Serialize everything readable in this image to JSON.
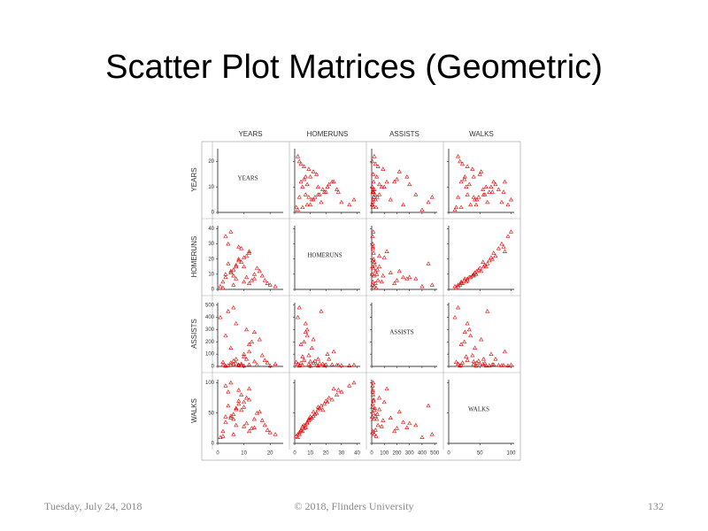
{
  "title": "Scatter Plot Matrices (Geometric)",
  "footer": {
    "date": "Tuesday, July 24, 2018",
    "copyright": "© 2018, Flinders University",
    "page": "132"
  },
  "chart_data": {
    "type": "scatter_matrix",
    "color": "#e00000",
    "variables": [
      {
        "name": "YEARS",
        "lim": [
          0,
          25
        ],
        "ticks": [
          0,
          10,
          20
        ],
        "values": [
          2,
          3,
          5,
          6,
          8,
          10,
          12,
          14,
          4,
          7,
          9,
          11,
          13,
          15,
          17,
          19,
          1,
          3,
          5,
          7,
          9,
          11,
          6,
          8,
          10,
          12,
          16,
          18,
          20,
          2,
          4,
          6,
          8,
          10,
          14,
          3,
          5,
          7,
          12,
          22
        ]
      },
      {
        "name": "HOMERUNS",
        "lim": [
          0,
          42
        ],
        "ticks": [
          0,
          10,
          20,
          30,
          40
        ],
        "values": [
          5,
          8,
          12,
          3,
          20,
          15,
          25,
          10,
          30,
          7,
          18,
          22,
          6,
          14,
          9,
          4,
          2,
          35,
          11,
          16,
          27,
          8,
          13,
          19,
          5,
          24,
          12,
          6,
          3,
          1,
          17,
          9,
          28,
          21,
          7,
          10,
          38,
          15,
          4,
          2
        ]
      },
      {
        "name": "ASSISTS",
        "lim": [
          0,
          520
        ],
        "ticks": [
          0,
          100,
          200,
          300,
          400,
          500
        ],
        "values": [
          10,
          250,
          30,
          480,
          15,
          5,
          120,
          40,
          8,
          350,
          20,
          60,
          200,
          12,
          90,
          30,
          400,
          6,
          150,
          25,
          10,
          300,
          45,
          7,
          80,
          15,
          220,
          50,
          5,
          35,
          450,
          18,
          9,
          100,
          280,
          3,
          12,
          60,
          180,
          20
        ]
      },
      {
        "name": "WALKS",
        "lim": [
          0,
          105
        ],
        "ticks": [
          0,
          50,
          100
        ],
        "values": [
          20,
          35,
          45,
          15,
          70,
          60,
          90,
          40,
          85,
          30,
          55,
          75,
          25,
          50,
          38,
          22,
          10,
          95,
          42,
          58,
          80,
          33,
          48,
          65,
          28,
          72,
          52,
          30,
          18,
          12,
          62,
          40,
          88,
          68,
          26,
          44,
          100,
          56,
          20,
          15
        ]
      }
    ]
  }
}
